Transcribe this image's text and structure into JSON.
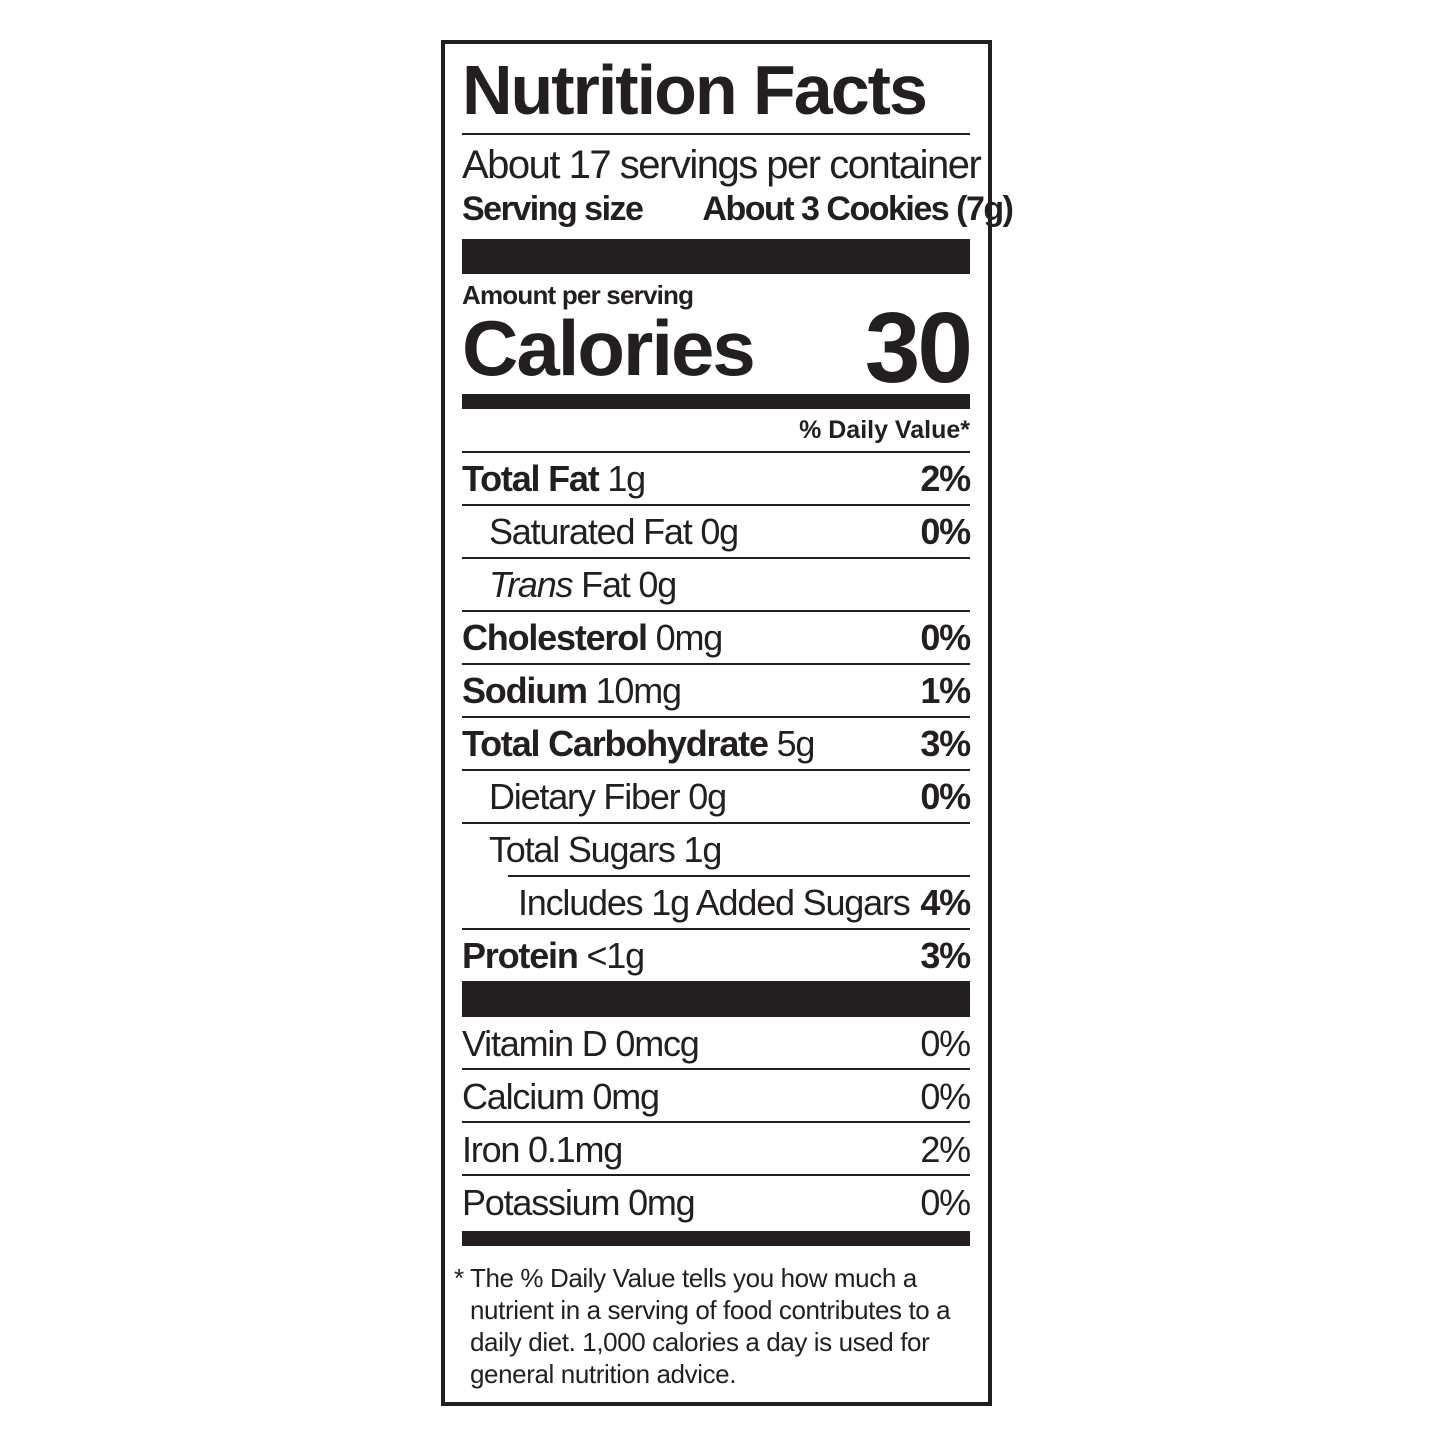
{
  "title": "Nutrition Facts",
  "servings": "About 17 servings per container",
  "serving_size": {
    "label": "Serving size",
    "value": "About 3 Cookies (7g)"
  },
  "amount_per_serving": "Amount per serving",
  "calories": {
    "label": "Calories",
    "value": 30
  },
  "daily_value_header": "% Daily Value*",
  "nutrients": [
    {
      "name": "Total Fat",
      "amount": "1g",
      "dv": "2%"
    },
    {
      "name": "Saturated Fat",
      "amount": "0g",
      "dv": "0%"
    },
    {
      "italic": "Trans",
      "name": "Fat",
      "amount": "0g"
    },
    {
      "name": "Cholesterol",
      "amount": "0mg",
      "dv": "0%"
    },
    {
      "name": "Sodium",
      "amount": "10mg",
      "dv": "1%"
    },
    {
      "name": "Total Carbohydrate",
      "amount": "5g",
      "dv": "3%"
    },
    {
      "name": "Dietary Fiber",
      "amount": "0g",
      "dv": "0%"
    },
    {
      "name": "Total Sugars",
      "amount": "1g"
    },
    {
      "name": "Includes 1g Added Sugars",
      "dv": "4%"
    },
    {
      "name": "Protein",
      "amount": "<1g",
      "dv": "3%"
    }
  ],
  "vitamins": [
    {
      "name": "Vitamin D 0mcg",
      "dv": "0%"
    },
    {
      "name": "Calcium 0mg",
      "dv": "0%"
    },
    {
      "name": "Iron 0.1mg",
      "dv": "2%"
    },
    {
      "name": "Potassium 0mg",
      "dv": "0%"
    }
  ],
  "footnote": {
    "mark": "*",
    "text": "The % Daily Value tells you how much a nutrient in a serving of food contributes to a daily diet. 1,000 calories a day is used for general nutrition advice."
  }
}
